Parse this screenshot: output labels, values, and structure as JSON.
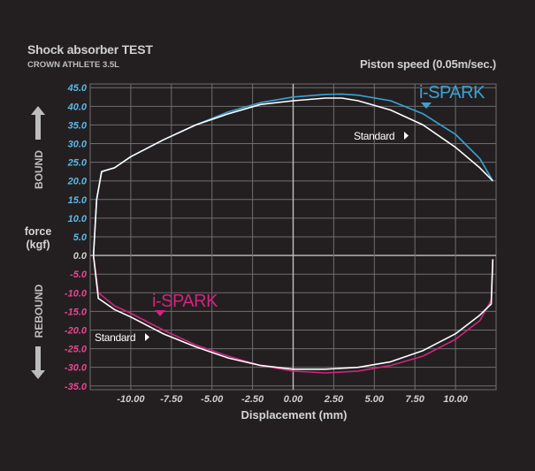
{
  "header": {
    "title": "Shock absorber TEST",
    "subtitle": "CROWN ATHLETE 3.5L",
    "speed": "Piston speed (0.05m/sec.)"
  },
  "labels": {
    "bound": "BOUND",
    "rebound": "REBOUND",
    "ylabel_line1": "force",
    "ylabel_line2": "(kgf)",
    "xlabel": "Displacement (mm)"
  },
  "colors": {
    "bound_ticks": "#5bb8e8",
    "rebound_ticks": "#e7478f",
    "ispark_bound": "#3aa3d6",
    "ispark_rebound": "#d1247f",
    "standard": "#ffffff",
    "grid": "#6e6e6e",
    "axis": "#bfbfbf"
  },
  "chart_data": {
    "type": "line",
    "xlabel": "Displacement (mm)",
    "ylabel": "force (kgf)",
    "xlim": [
      -12.5,
      12.5
    ],
    "ylim": [
      -36,
      46
    ],
    "x_ticks": [
      -10,
      -7.5,
      -5,
      -2.5,
      0,
      2.5,
      5,
      7.5,
      10
    ],
    "x_tick_labels": [
      "-10.00",
      "-7.50",
      "-5.00",
      "-2.50",
      "0.00",
      "2.50",
      "5.00",
      "7.50",
      "10.00"
    ],
    "y_ticks": [
      45,
      40,
      35,
      30,
      25,
      20,
      15,
      10,
      5,
      0,
      -5,
      -10,
      -15,
      -20,
      -25,
      -30,
      -35
    ],
    "y_tick_labels": [
      "45.0",
      "40.0",
      "35.0",
      "30.0",
      "25.0",
      "20.0",
      "15.0",
      "10.0",
      "5.0",
      "0.0",
      "-5.0",
      "-10.0",
      "-15.0",
      "-20.0",
      "-25.0",
      "-30.0",
      "-35.0"
    ],
    "grid": true,
    "annotations": {
      "ispark_bound": "i-SPARK",
      "ispark_rebound": "i-SPARK",
      "standard_bound": "Standard",
      "standard_rebound": "Standard"
    },
    "series": [
      {
        "name": "i-SPARK",
        "phase": "bound",
        "x": [
          -12.3,
          -12.1,
          -11.8,
          -11,
          -10,
          -8,
          -6,
          -4,
          -2,
          0,
          2,
          3,
          4,
          6,
          8,
          10,
          11.5,
          12.3
        ],
        "y": [
          0,
          15,
          22.5,
          23.5,
          26.5,
          31,
          35,
          38.5,
          41,
          42.5,
          43.2,
          43.3,
          43,
          41.5,
          38,
          32.5,
          26,
          20
        ]
      },
      {
        "name": "Standard",
        "phase": "bound",
        "x": [
          -12.3,
          -12.1,
          -11.8,
          -11,
          -10,
          -8,
          -6,
          -4,
          -2,
          0,
          2,
          3,
          4,
          6,
          8,
          10,
          11.5,
          12.3
        ],
        "y": [
          0,
          15,
          22.5,
          23.5,
          26.5,
          31,
          35,
          38,
          40.5,
          41.5,
          42.2,
          42.2,
          41.5,
          39,
          35,
          29,
          23.5,
          20
        ]
      },
      {
        "name": "i-SPARK",
        "phase": "rebound",
        "x": [
          -12.3,
          -12,
          -11,
          -10,
          -8,
          -6,
          -4,
          -2,
          0,
          2,
          4,
          6,
          8,
          10,
          11.5,
          12.2,
          12.3
        ],
        "y": [
          0,
          -10,
          -13.5,
          -15.5,
          -20,
          -24,
          -27,
          -29.5,
          -31,
          -31.5,
          -31,
          -29.5,
          -27,
          -22.5,
          -17.5,
          -12,
          -1
        ]
      },
      {
        "name": "Standard",
        "phase": "rebound",
        "x": [
          -12.3,
          -12,
          -11,
          -10,
          -8,
          -6,
          -4,
          -2,
          0,
          2,
          4,
          6,
          8,
          10,
          11.5,
          12.2,
          12.3
        ],
        "y": [
          0,
          -11.5,
          -14.5,
          -16.5,
          -21,
          -24.5,
          -27.5,
          -29.5,
          -30.5,
          -30.5,
          -30,
          -28.5,
          -25.5,
          -21,
          -16,
          -13,
          -1
        ]
      }
    ]
  }
}
